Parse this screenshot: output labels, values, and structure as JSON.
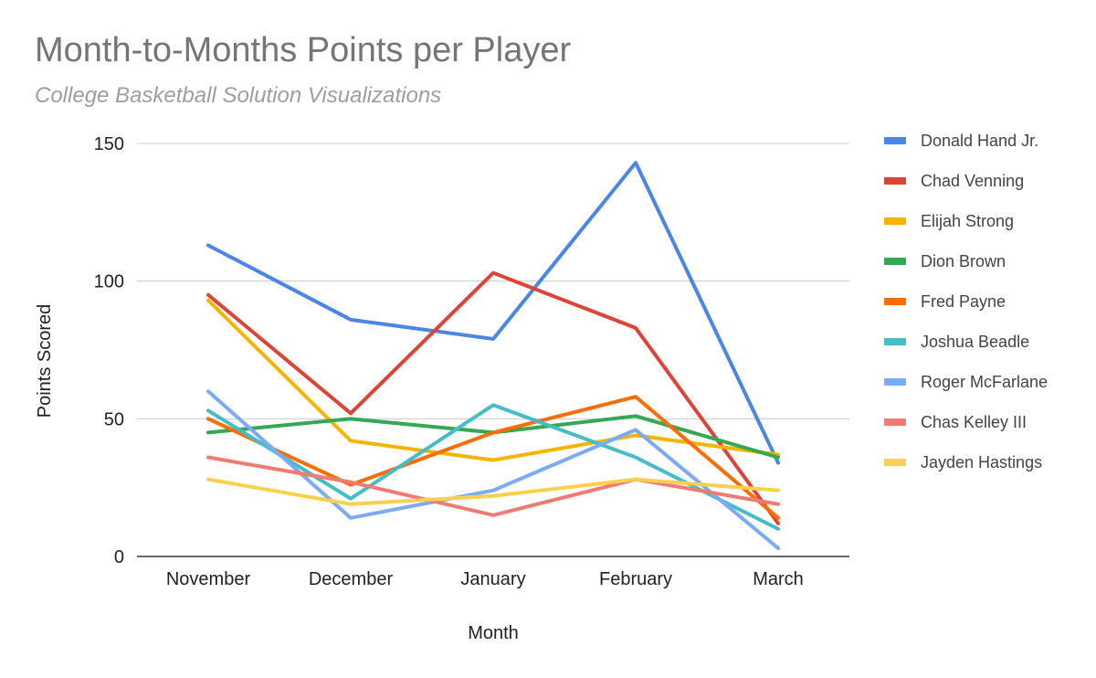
{
  "chart_data": {
    "type": "line",
    "title": "Month-to-Months Points per Player",
    "subtitle": "College Basketball Solution Visualizations",
    "xlabel": "Month",
    "ylabel": "Points Scored",
    "categories": [
      "November",
      "December",
      "January",
      "February",
      "March"
    ],
    "ylim": [
      0,
      150
    ],
    "yticks": [
      "150",
      "100",
      "50",
      "0"
    ],
    "ytick_values": [
      150,
      100,
      50,
      0
    ],
    "grid": true,
    "legend_position": "right",
    "series": [
      {
        "name": "Donald Hand Jr.",
        "color": "#4a86e8",
        "values": [
          113,
          86,
          79,
          143,
          34
        ]
      },
      {
        "name": "Chad Venning",
        "color": "#db4437",
        "values": [
          95,
          52,
          103,
          83,
          12
        ]
      },
      {
        "name": "Elijah Strong",
        "color": "#f4b400",
        "values": [
          93,
          42,
          35,
          44,
          37
        ]
      },
      {
        "name": "Dion Brown",
        "color": "#34a853",
        "values": [
          45,
          50,
          45,
          51,
          36
        ]
      },
      {
        "name": "Fred Payne",
        "color": "#ff6d01",
        "values": [
          50,
          26,
          45,
          58,
          14
        ]
      },
      {
        "name": "Joshua Beadle",
        "color": "#46bdc6",
        "values": [
          53,
          21,
          55,
          36,
          10
        ]
      },
      {
        "name": "Roger McFarlane",
        "color": "#7baaf7",
        "values": [
          60,
          14,
          24,
          46,
          3
        ]
      },
      {
        "name": "Chas Kelley III",
        "color": "#f07b72",
        "values": [
          36,
          27,
          15,
          28,
          19
        ]
      },
      {
        "name": "Jayden Hastings",
        "color": "#fcd04f",
        "values": [
          28,
          19,
          22,
          28,
          24
        ]
      }
    ]
  }
}
